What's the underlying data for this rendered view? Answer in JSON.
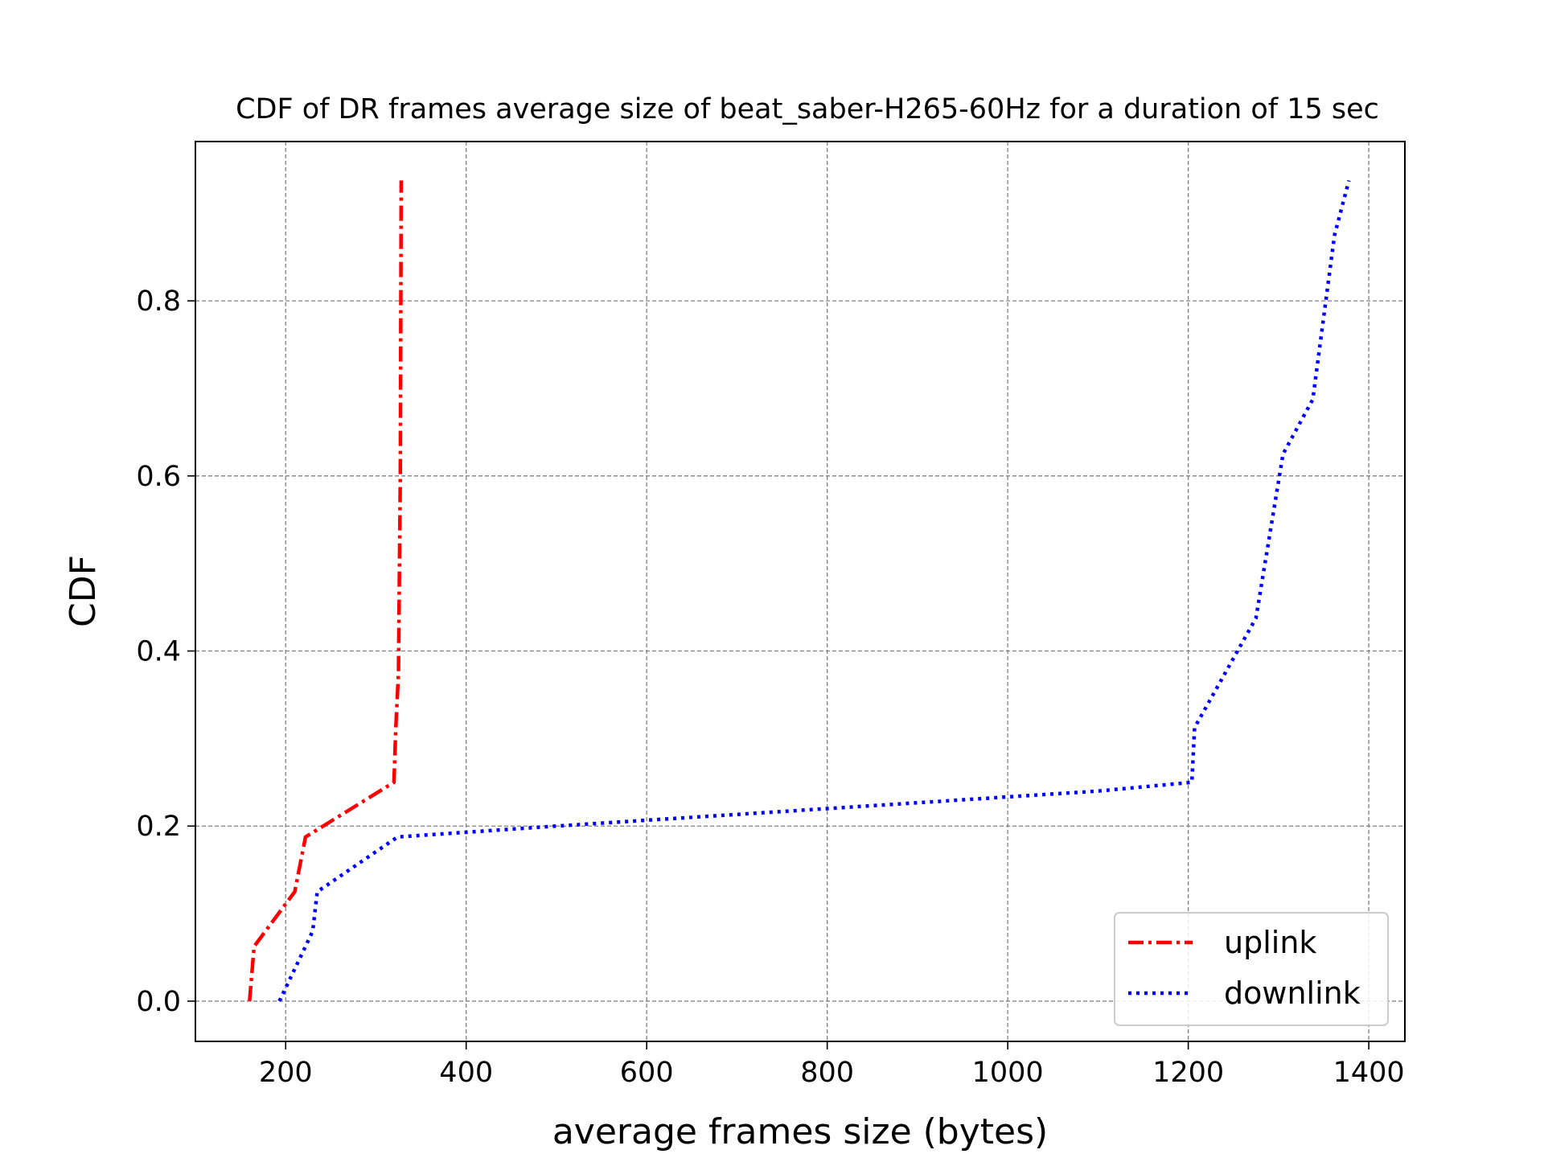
{
  "chart_data": {
    "type": "line",
    "title": "CDF of DR frames average size of beat_saber-H265-60Hz for a duration of 15 sec",
    "xlabel": "average frames size (bytes)",
    "ylabel": "CDF",
    "xlim": [
      100,
      1440
    ],
    "ylim": [
      -0.046,
      0.982
    ],
    "xticks": [
      200,
      400,
      600,
      800,
      1000,
      1200,
      1400
    ],
    "yticks": [
      0.0,
      0.2,
      0.4,
      0.6,
      0.8
    ],
    "xtick_labels": [
      "200",
      "400",
      "600",
      "800",
      "1000",
      "1200",
      "1400"
    ],
    "ytick_labels": [
      "0.0",
      "0.2",
      "0.4",
      "0.6",
      "0.8"
    ],
    "grid": true,
    "legend_position": "bottom-right",
    "series": [
      {
        "name": "uplink",
        "color": "#ff0000",
        "style": "dashdot",
        "x": [
          160,
          165,
          210,
          222,
          320,
          322,
          325,
          327,
          328
        ],
        "y": [
          0.0,
          0.0625,
          0.125,
          0.1875,
          0.25,
          0.3125,
          0.375,
          0.6,
          0.9375
        ]
      },
      {
        "name": "downlink",
        "color": "#0000ff",
        "style": "dotted",
        "x": [
          193,
          222,
          230,
          235,
          324,
          500,
          800,
          1100,
          1204,
          1207,
          1275,
          1305,
          1338,
          1362,
          1378
        ],
        "y": [
          0.0,
          0.0625,
          0.08,
          0.125,
          0.1875,
          0.2,
          0.22,
          0.24,
          0.25,
          0.3125,
          0.4375,
          0.625,
          0.6875,
          0.875,
          0.9375
        ]
      }
    ]
  }
}
